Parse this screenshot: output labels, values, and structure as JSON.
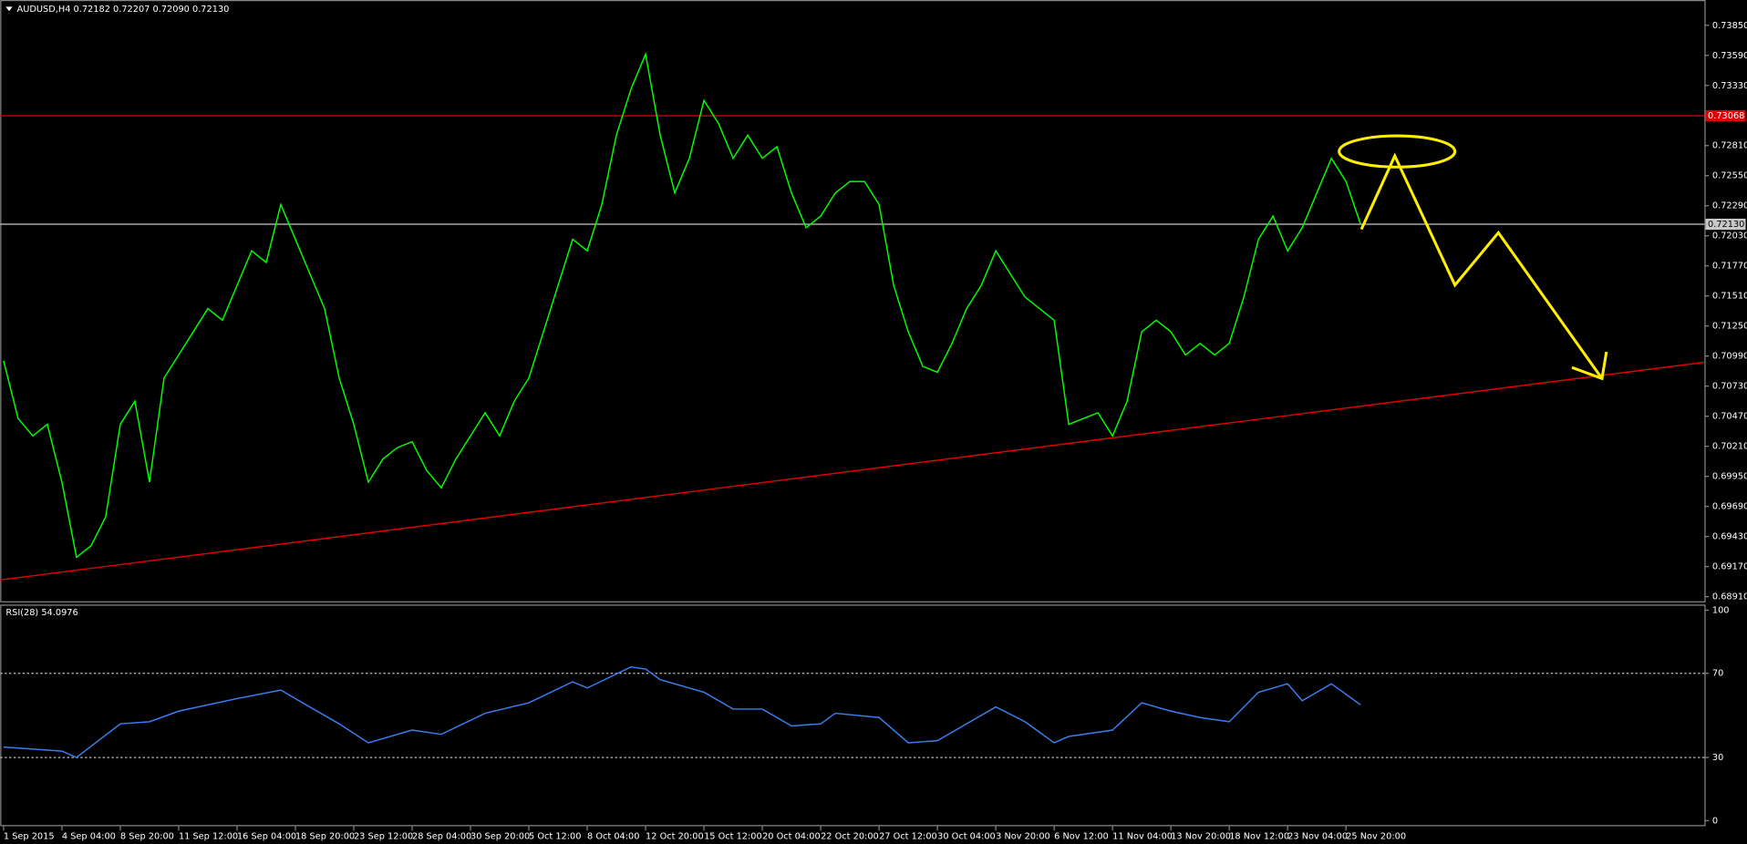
{
  "chart_data": [
    {
      "type": "line",
      "title": "AUDUSD,H4  0.72182 0.72207 0.72090 0.72130",
      "categories": [
        "1 Sep 2015",
        null,
        null,
        null,
        "4 Sep 04:00",
        null,
        null,
        null,
        "8 Sep 20:00",
        null,
        null,
        null,
        "11 Sep 12:00",
        null,
        null,
        null,
        "16 Sep 04:00",
        null,
        null,
        null,
        "18 Sep 20:00",
        null,
        null,
        null,
        "23 Sep 12:00",
        null,
        null,
        null,
        "28 Sep 04:00",
        null,
        null,
        null,
        "30 Sep 20:00",
        null,
        null,
        null,
        "5 Oct 12:00",
        null,
        null,
        null,
        "8 Oct 04:00",
        null,
        null,
        null,
        "12 Oct 20:00",
        null,
        null,
        null,
        "15 Oct 12:00",
        null,
        null,
        null,
        "20 Oct 04:00",
        null,
        null,
        null,
        "22 Oct 20:00",
        null,
        null,
        null,
        "27 Oct 12:00",
        null,
        null,
        null,
        "30 Oct 04:00",
        null,
        null,
        null,
        "3 Nov 20:00",
        null,
        null,
        null,
        "6 Nov 12:00",
        null,
        null,
        null,
        "11 Nov 04:00",
        null,
        null,
        null,
        "13 Nov 20:00",
        null,
        null,
        null,
        "18 Nov 12:00",
        null,
        null,
        null,
        "23 Nov 04:00",
        null,
        null,
        null,
        "25 Nov 20:00",
        null
      ],
      "series": [
        {
          "color": "#00ff00",
          "values": [
            0.7095,
            0.7045,
            0.703,
            0.704,
            0.699,
            0.6925,
            0.6935,
            0.696,
            0.704,
            0.706,
            0.699,
            0.708,
            0.71,
            0.712,
            0.714,
            0.713,
            0.716,
            0.719,
            0.718,
            0.723,
            0.72,
            0.717,
            0.714,
            0.708,
            0.704,
            0.699,
            0.701,
            0.702,
            0.7025,
            0.7,
            0.6985,
            0.701,
            0.703,
            0.705,
            0.703,
            0.706,
            0.708,
            0.712,
            0.716,
            0.72,
            0.719,
            0.723,
            0.729,
            0.733,
            0.736,
            0.729,
            0.724,
            0.727,
            0.732,
            0.73,
            0.727,
            0.729,
            0.727,
            0.728,
            0.724,
            0.721,
            0.722,
            0.724,
            0.725,
            0.725,
            0.723,
            0.716,
            0.712,
            0.709,
            0.7085,
            0.711,
            0.714,
            0.716,
            0.719,
            0.717,
            0.715,
            0.714,
            0.713,
            0.704,
            0.7045,
            0.705,
            0.703,
            0.706,
            0.712,
            0.713,
            0.712,
            0.71,
            0.711,
            0.71,
            0.711,
            0.715,
            0.72,
            0.722,
            0.719,
            0.721,
            0.724,
            0.727,
            0.725,
            0.7213
          ]
        }
      ],
      "ylim": [
        0.6887,
        0.7404
      ],
      "yticks": [
        {
          "value": 0.7385,
          "label": "0.73850"
        },
        {
          "value": 0.7359,
          "label": "0.73590"
        },
        {
          "value": 0.7333,
          "label": "0.73330"
        },
        {
          "value": 0.7281,
          "label": "0.72810"
        },
        {
          "value": 0.7255,
          "label": "0.72550"
        },
        {
          "value": 0.7229,
          "label": "0.72290"
        },
        {
          "value": 0.7203,
          "label": "0.72030"
        },
        {
          "value": 0.7177,
          "label": "0.71770"
        },
        {
          "value": 0.7151,
          "label": "0.71510"
        },
        {
          "value": 0.7125,
          "label": "0.71250"
        },
        {
          "value": 0.7099,
          "label": "0.70990"
        },
        {
          "value": 0.7073,
          "label": "0.70730"
        },
        {
          "value": 0.7047,
          "label": "0.70470"
        },
        {
          "value": 0.7021,
          "label": "0.70210"
        },
        {
          "value": 0.6995,
          "label": "0.69950"
        },
        {
          "value": 0.6969,
          "label": "0.69690"
        },
        {
          "value": 0.6943,
          "label": "0.69430"
        },
        {
          "value": 0.6917,
          "label": "0.69170"
        },
        {
          "value": 0.6891,
          "label": "0.68910"
        }
      ],
      "price_lines": [
        {
          "value": 0.73068,
          "label": "0.73068",
          "color": "#e00000"
        },
        {
          "value": 0.7213,
          "label": "0.72130",
          "color": "#c8c8c8"
        }
      ],
      "trendline": {
        "x": [
          -0.2,
          116.6
        ],
        "values": [
          0.69055,
          0.70937
        ],
        "color": "#e00000"
      }
    },
    {
      "type": "line",
      "title": "RSI(28) 54.0976",
      "x": [
        0,
        4,
        5,
        8,
        10,
        12,
        16,
        19,
        20,
        23,
        25,
        28,
        30,
        33,
        36,
        39,
        40,
        43,
        44,
        45,
        48,
        50,
        52,
        54,
        56,
        57,
        60,
        62,
        64,
        68,
        70,
        72,
        73,
        76,
        78,
        80,
        82,
        84,
        86,
        88,
        89,
        91,
        93
      ],
      "series": [
        {
          "color": "#3a7ff0",
          "values": [
            35,
            33,
            30,
            46,
            47,
            52,
            58,
            62,
            58,
            46,
            37,
            43,
            41,
            51,
            56,
            66,
            63,
            73,
            72,
            67,
            61,
            53,
            53,
            45,
            46,
            51,
            49,
            37,
            38,
            54,
            47,
            37,
            40,
            43,
            56,
            52,
            49,
            47,
            61,
            65,
            57,
            65,
            55
          ]
        }
      ],
      "ylim": [
        0,
        100
      ],
      "yticks": [
        100,
        70,
        30,
        0
      ],
      "levels": [
        70,
        30
      ]
    }
  ]
}
